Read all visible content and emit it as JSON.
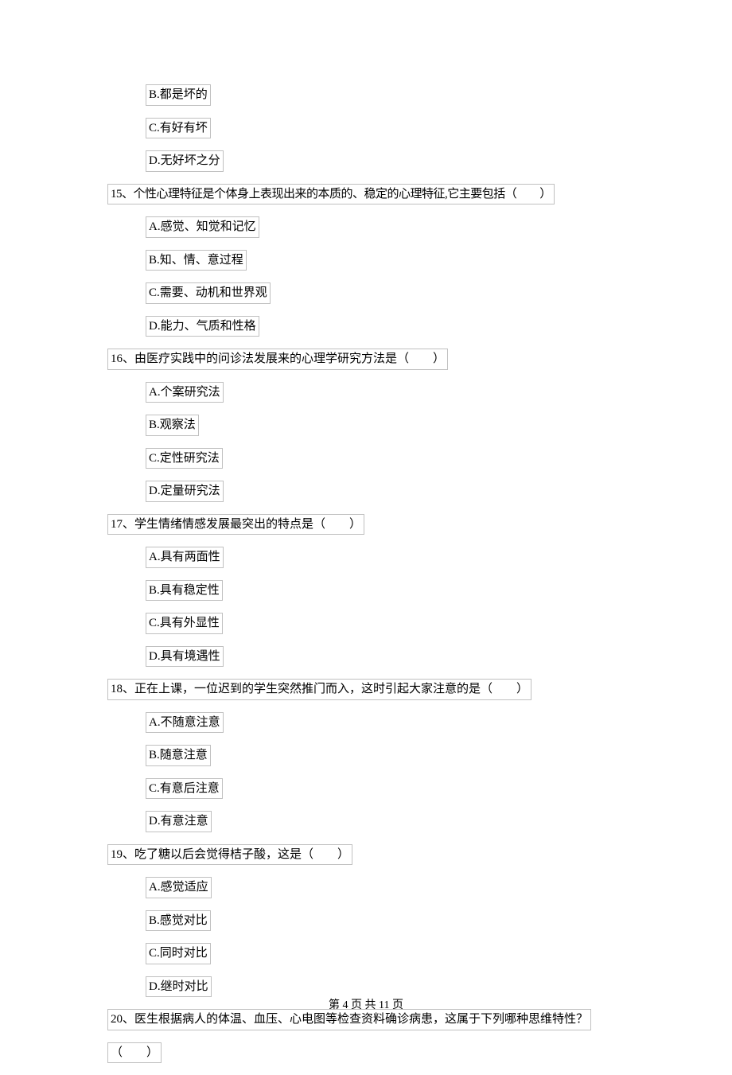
{
  "orphan_options": [
    {
      "label": "B.",
      "text": "都是坏的"
    },
    {
      "label": "C.",
      "text": "有好有坏"
    },
    {
      "label": "D.",
      "text": "无好坏之分"
    }
  ],
  "questions": [
    {
      "number": "15、",
      "stem": "个性心理特征是个体身上表现出来的本质的、稳定的心理特征,它主要包括（　　）",
      "options": [
        {
          "label": "A.",
          "text": "感觉、知觉和记忆"
        },
        {
          "label": "B.",
          "text": "知、情、意过程"
        },
        {
          "label": "C.",
          "text": "需要、动机和世界观"
        },
        {
          "label": "D.",
          "text": "能力、气质和性格"
        }
      ]
    },
    {
      "number": "16、",
      "stem": "由医疗实践中的问诊法发展来的心理学研究方法是（　　）",
      "options": [
        {
          "label": "A.",
          "text": "个案研究法"
        },
        {
          "label": "B.",
          "text": "观察法"
        },
        {
          "label": "C.",
          "text": "定性研究法"
        },
        {
          "label": "D.",
          "text": "定量研究法"
        }
      ]
    },
    {
      "number": "17、",
      "stem": "学生情绪情感发展最突出的特点是（　　）",
      "options": [
        {
          "label": "A.",
          "text": "具有两面性"
        },
        {
          "label": "B.",
          "text": "具有稳定性"
        },
        {
          "label": "C.",
          "text": "具有外显性"
        },
        {
          "label": "D.",
          "text": "具有境遇性"
        }
      ]
    },
    {
      "number": "18、",
      "stem": "正在上课，一位迟到的学生突然推门而入，这时引起大家注意的是（　　）",
      "options": [
        {
          "label": "A.",
          "text": "不随意注意"
        },
        {
          "label": "B.",
          "text": "随意注意"
        },
        {
          "label": "C.",
          "text": "有意后注意"
        },
        {
          "label": "D.",
          "text": "有意注意"
        }
      ]
    },
    {
      "number": "19、",
      "stem": "吃了糖以后会觉得桔子酸，这是（　　）",
      "options": [
        {
          "label": "A.",
          "text": "感觉适应"
        },
        {
          "label": "B.",
          "text": "感觉对比"
        },
        {
          "label": "C.",
          "text": "同时对比"
        },
        {
          "label": "D.",
          "text": "继时对比"
        }
      ]
    },
    {
      "number": "20、",
      "stem": "医生根据病人的体温、血压、心电图等检查资料确诊病患，这属于下列哪种思维特性？",
      "stem_cont": "（　　）",
      "options": []
    }
  ],
  "footer": {
    "text": "第 4 页 共 11 页"
  }
}
